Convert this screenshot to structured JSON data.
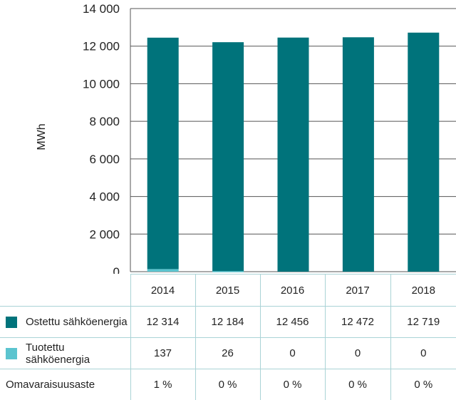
{
  "chart_data": {
    "type": "bar",
    "stacked": true,
    "categories": [
      "2014",
      "2015",
      "2016",
      "2017",
      "2018"
    ],
    "ylabel": "MWh",
    "ylim": [
      0,
      14000
    ],
    "yticks": [
      "0",
      "2 000",
      "4 000",
      "6 000",
      "8 000",
      "10 000",
      "12 000",
      "14 000"
    ],
    "ytick_values": [
      0,
      2000,
      4000,
      6000,
      8000,
      10000,
      12000,
      14000
    ],
    "grid": true,
    "series": [
      {
        "name": "Ostettu sähköenergia",
        "color": "#00737b",
        "values": [
          12314,
          12184,
          12456,
          12472,
          12719
        ],
        "labels": [
          "12 314",
          "12 184",
          "12 456",
          "12 472",
          "12 719"
        ]
      },
      {
        "name": "Tuotettu sähköenergia",
        "color": "#5bc4cf",
        "values": [
          137,
          26,
          0,
          0,
          0
        ],
        "labels": [
          "137",
          "26",
          "0",
          "0",
          "0"
        ]
      }
    ],
    "extra_row": {
      "name": "Omavaraisuusaste",
      "labels": [
        "1 %",
        "0 %",
        "0 %",
        "0 %",
        "0 %"
      ]
    }
  }
}
